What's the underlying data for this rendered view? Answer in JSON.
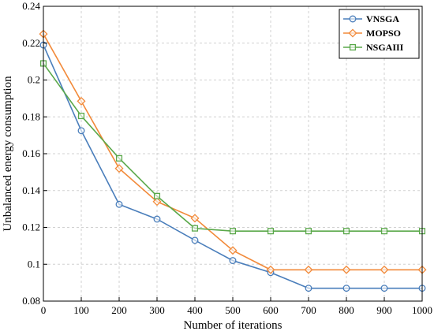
{
  "chart_data": {
    "type": "line",
    "title": "",
    "xlabel": "Number of iterations",
    "ylabel": "Unbalanced energy consumption",
    "x": [
      0,
      100,
      200,
      300,
      400,
      500,
      600,
      700,
      800,
      900,
      1000
    ],
    "xlim": [
      0,
      1000
    ],
    "ylim": [
      0.08,
      0.24
    ],
    "xticks": [
      "0",
      "100",
      "200",
      "300",
      "400",
      "500",
      "600",
      "700",
      "800",
      "900",
      "1000"
    ],
    "yticks": [
      "0.08",
      "0.1",
      "0.12",
      "0.14",
      "0.16",
      "0.18",
      "0.2",
      "0.22",
      "0.24"
    ],
    "grid": true,
    "legend_position": "top-right",
    "series": [
      {
        "name": "VNSGA",
        "color": "#4a7ebb",
        "marker": "circle",
        "values": [
          0.219,
          0.1725,
          0.1325,
          0.1245,
          0.113,
          0.102,
          0.0955,
          0.087,
          0.087,
          0.087,
          0.087
        ]
      },
      {
        "name": "MOPSO",
        "color": "#f28a3a",
        "marker": "diamond",
        "values": [
          0.225,
          0.1885,
          0.152,
          0.134,
          0.125,
          0.1075,
          0.097,
          0.097,
          0.097,
          0.097,
          0.097
        ]
      },
      {
        "name": "NSGAIII",
        "color": "#5aa84a",
        "marker": "square",
        "values": [
          0.209,
          0.1805,
          0.1575,
          0.137,
          0.1195,
          0.118,
          0.118,
          0.118,
          0.118,
          0.118,
          0.118
        ]
      }
    ]
  }
}
